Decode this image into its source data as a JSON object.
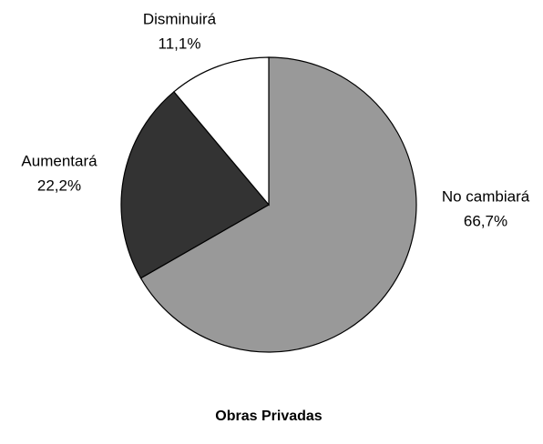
{
  "chart_data": {
    "type": "pie",
    "title": "Obras Privadas",
    "categories": [
      "No cambiará",
      "Aumentará",
      "Disminuirá"
    ],
    "values": [
      66.7,
      22.2,
      11.1
    ],
    "value_labels": [
      "66,7%",
      "22,2%",
      "11,1%"
    ],
    "colors": [
      "#999999",
      "#333333",
      "#ffffff"
    ]
  }
}
